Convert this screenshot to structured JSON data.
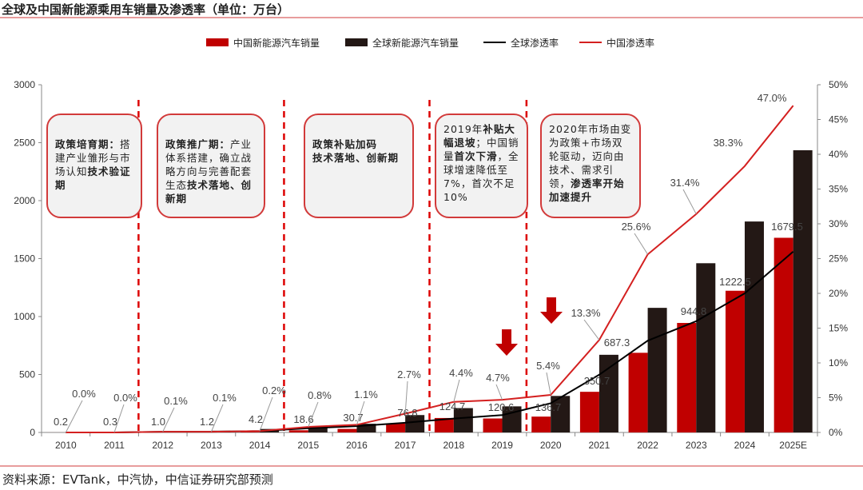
{
  "title": "全球及中国新能源乘用车销量及渗透率（单位：万台）",
  "source": "资料来源：EVTank，中汽协，中信证券研究部预测",
  "colors": {
    "china": "#c00000",
    "global": "#231815",
    "global_line": "#000000",
    "china_line": "#d42020",
    "box_border": "#d23a3a",
    "arrow": "#c00000"
  },
  "annotations": [
    [
      {
        "t": "政策培育期：",
        "b": true
      },
      {
        "t": "搭建产业雏形与市场认知",
        "b": false
      },
      {
        "t": "技术验证期",
        "b": true
      }
    ],
    [
      {
        "t": "政策推广期：",
        "b": true
      },
      {
        "t": "产业体系搭建，确立战略方向与完善配套生态",
        "b": false
      },
      {
        "t": "技术落地、创新期",
        "b": true
      }
    ],
    [
      {
        "t": "政策补贴加码",
        "b": true
      },
      {
        "t": "技术落地、创新期",
        "b": true
      }
    ],
    [
      {
        "t": "2019年",
        "b": false
      },
      {
        "t": "补贴大幅退坡",
        "b": true
      },
      {
        "t": "；中国销量",
        "b": false
      },
      {
        "t": "首次下滑",
        "b": true
      },
      {
        "t": "，全球增速降低至7%，首次不足10%",
        "b": false
      }
    ],
    [
      {
        "t": "2020年市场由变为政策+市场双轮驱动，迈向由技术、需求引领，",
        "b": false
      },
      {
        "t": "渗透率开始加速提升",
        "b": true
      }
    ]
  ],
  "chart_data": {
    "type": "bar",
    "title": "全球及中国新能源乘用车销量及渗透率（单位：万台）",
    "categories": [
      "2010",
      "2011",
      "2012",
      "2013",
      "2014",
      "2015",
      "2016",
      "2017",
      "2018",
      "2019",
      "2020",
      "2021",
      "2022",
      "2023",
      "2024",
      "2025E"
    ],
    "ylim": [
      0,
      3000
    ],
    "yticks": [
      0,
      500,
      1000,
      1500,
      2000,
      2500,
      3000
    ],
    "y2lim": [
      0,
      50
    ],
    "y2ticks": [
      "0%",
      "5%",
      "10%",
      "15%",
      "20%",
      "25%",
      "30%",
      "35%",
      "40%",
      "45%",
      "50%"
    ],
    "legend_position": "top",
    "series": [
      {
        "name": "中国新能源汽车销量",
        "type": "bar",
        "axis": "left",
        "values": [
          0.2,
          0.3,
          1.0,
          1.2,
          4.2,
          18.6,
          30.7,
          76.8,
          124.7,
          120.6,
          136.7,
          350.7,
          687.3,
          944.8,
          1222.5,
          1679.5
        ],
        "labels": [
          "0.2",
          "0.3",
          "1.0",
          "1.2",
          "4.2",
          "18.6",
          "30.7",
          "76.8",
          "124.7",
          "120.6",
          "136.7",
          "350.7",
          "687.3",
          "944.8",
          "1222.5",
          "1679.5"
        ]
      },
      {
        "name": "全球新能源汽车销量",
        "type": "bar",
        "axis": "right-bar",
        "values": [
          1,
          2,
          10,
          15,
          30,
          55,
          75,
          150,
          210,
          225,
          315,
          670,
          1075,
          1460,
          1820,
          2435
        ]
      },
      {
        "name": "全球渗透率",
        "type": "line",
        "axis": "right",
        "values": [
          0.0,
          0.0,
          0.1,
          0.1,
          0.2,
          0.6,
          0.9,
          1.4,
          2.0,
          2.5,
          4.2,
          8.3,
          13.2,
          16.0,
          20.0,
          26.0
        ]
      },
      {
        "name": "中国渗透率",
        "type": "line",
        "axis": "right",
        "values": [
          0.0,
          0.0,
          0.1,
          0.1,
          0.2,
          0.8,
          1.1,
          2.7,
          4.4,
          4.7,
          5.4,
          13.3,
          25.6,
          31.4,
          38.3,
          47.0
        ],
        "labels": [
          "0.0%",
          "0.0%",
          "0.1%",
          "0.1%",
          "0.2%",
          "0.8%",
          "1.1%",
          "2.7%",
          "4.4%",
          "4.7%",
          "5.4%",
          "13.3%",
          "25.6%",
          "31.4%",
          "38.3%",
          "47.0%"
        ]
      }
    ]
  }
}
